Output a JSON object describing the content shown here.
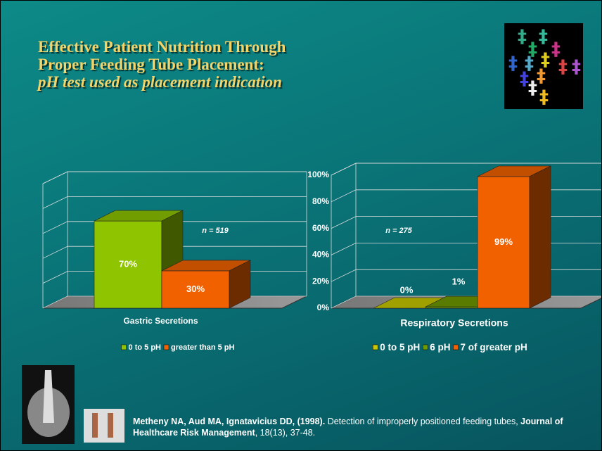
{
  "title": {
    "line1": "Effective Patient Nutrition Through",
    "line2": "Proper Feeding Tube Placement:",
    "line3": "pH test used as placement indication"
  },
  "chart_data": [
    {
      "type": "bar",
      "categories": [
        "Gastric Secretions"
      ],
      "annotation": "n = 519",
      "series": [
        {
          "name": "0 to 5 pH",
          "color": "#8fc400",
          "values": [
            70
          ],
          "value_labels": [
            "70%"
          ]
        },
        {
          "name": "greater than 5 pH",
          "color": "#f26100",
          "values": [
            30
          ],
          "value_labels": [
            "30%"
          ]
        }
      ],
      "ylim": [
        0,
        100
      ],
      "yticks": [
        0,
        20,
        40,
        60,
        80,
        100
      ],
      "show_tick_labels": false,
      "grid": true
    },
    {
      "type": "bar",
      "categories": [
        "Respiratory Secretions"
      ],
      "annotation": "n = 275",
      "series": [
        {
          "name": "0 to 5 pH",
          "color": "#c8c800",
          "values": [
            0
          ],
          "value_labels": [
            "0%"
          ]
        },
        {
          "name": "6 pH",
          "color": "#6f9a00",
          "values": [
            1
          ],
          "value_labels": [
            "1%"
          ]
        },
        {
          "name": "7 of greater pH",
          "color": "#f26100",
          "values": [
            99
          ],
          "value_labels": [
            "99%"
          ]
        }
      ],
      "ylim": [
        0,
        100
      ],
      "yticks": [
        {
          "value": 0,
          "label": "0%"
        },
        {
          "value": 20,
          "label": "20%"
        },
        {
          "value": 40,
          "label": "40%"
        },
        {
          "value": 60,
          "label": "60%"
        },
        {
          "value": 80,
          "label": "80%"
        },
        {
          "value": 100,
          "label": "100%"
        }
      ],
      "show_tick_labels": true,
      "grid": true
    }
  ],
  "citation": {
    "authors": "Metheny NA, Aud MA, Ignatavicius DD, (1998).",
    "text": "Detection of improperly positioned feeding tubes,",
    "journal": "Journal of Healthcare Risk Management",
    "details": ", 18(13), 37-48."
  }
}
